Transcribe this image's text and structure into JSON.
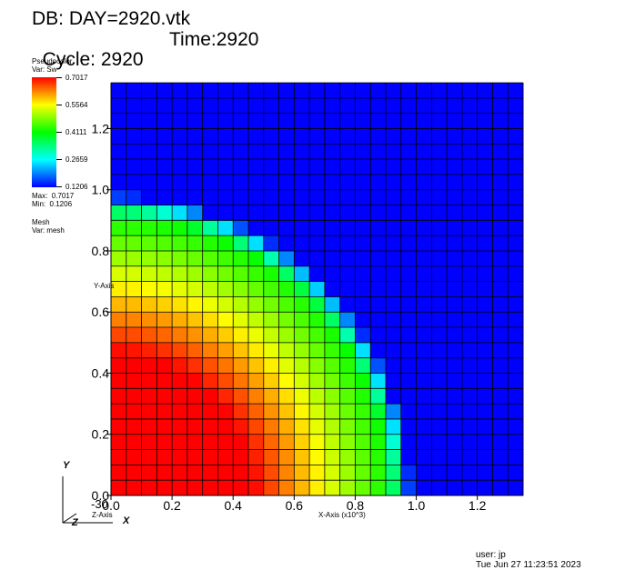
{
  "header": {
    "db_title": "DB: DAY=2920.vtk",
    "cycle": "Cycle: 2920",
    "time": "Time:2920"
  },
  "legend": {
    "plot_type": "Pseudocolor",
    "var": "Var: Sw",
    "ticks": [
      "0.7017",
      "0.5564",
      "0.4111",
      "0.2659",
      "0.1206"
    ],
    "max": "Max:  0.7017",
    "min": "Min:  0.1206",
    "mesh_label": "Mesh",
    "mesh_var": "Var: mesh"
  },
  "triad": {
    "y": "Y",
    "z": "Z",
    "x": "X",
    "z_axis": "Z-Axis",
    "z_value": "-30"
  },
  "footer": {
    "user": "user: jp",
    "date": "Tue Jun 27 11:23:51 2023"
  },
  "chart_data": {
    "type": "heatmap",
    "title": "DB: DAY=2920.vtk",
    "variable": "Sw",
    "xlabel": "X-Axis (x10^3)",
    "ylabel": "Y-Axis",
    "xlim": [
      0,
      1.35
    ],
    "ylim": [
      0,
      1.35
    ],
    "x_ticks": [
      "0.0",
      "0.2",
      "0.4",
      "0.6",
      "0.8",
      "1.0",
      "1.2"
    ],
    "y_ticks": [
      "0.0",
      "0.2",
      "0.4",
      "0.6",
      "0.8",
      "1.0",
      "1.2"
    ],
    "grid_cells": [
      27,
      27
    ],
    "cell_size": 0.05,
    "value_range": [
      0.1206,
      0.7017
    ],
    "colormap": [
      "#0000ff",
      "#00ffff",
      "#00ff00",
      "#ffff00",
      "#ff0000"
    ],
    "front_radius": 0.98,
    "grid_lines": true
  }
}
